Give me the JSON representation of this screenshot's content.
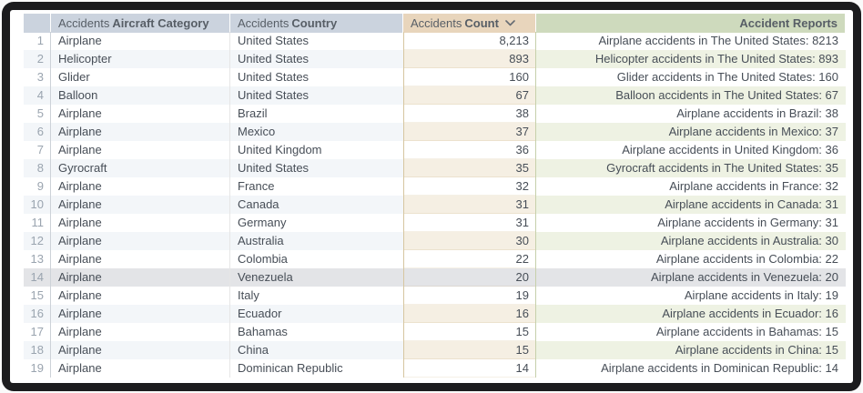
{
  "table": {
    "columns": [
      {
        "key": "n",
        "prefix": "",
        "label": ""
      },
      {
        "key": "category",
        "prefix": "Accidents",
        "label": "Aircraft Category"
      },
      {
        "key": "country",
        "prefix": "Accidents",
        "label": "Country"
      },
      {
        "key": "count",
        "prefix": "Accidents",
        "label": "Count",
        "sorted": "descending"
      },
      {
        "key": "report",
        "prefix": "",
        "label": "Accident Reports"
      }
    ],
    "highlighted_row": 14,
    "rows": [
      {
        "n": 1,
        "category": "Airplane",
        "country": "United States",
        "count": "8,213",
        "report": "Airplane accidents in The United States: 8213"
      },
      {
        "n": 2,
        "category": "Helicopter",
        "country": "United States",
        "count": "893",
        "report": "Helicopter accidents in The United States: 893"
      },
      {
        "n": 3,
        "category": "Glider",
        "country": "United States",
        "count": "160",
        "report": "Glider accidents in The United States: 160"
      },
      {
        "n": 4,
        "category": "Balloon",
        "country": "United States",
        "count": "67",
        "report": "Balloon accidents in The United States: 67"
      },
      {
        "n": 5,
        "category": "Airplane",
        "country": "Brazil",
        "count": "38",
        "report": "Airplane accidents in Brazil: 38"
      },
      {
        "n": 6,
        "category": "Airplane",
        "country": "Mexico",
        "count": "37",
        "report": "Airplane accidents in Mexico: 37"
      },
      {
        "n": 7,
        "category": "Airplane",
        "country": "United Kingdom",
        "count": "36",
        "report": "Airplane accidents in United Kingdom: 36"
      },
      {
        "n": 8,
        "category": "Gyrocraft",
        "country": "United States",
        "count": "35",
        "report": "Gyrocraft accidents in The United States: 35"
      },
      {
        "n": 9,
        "category": "Airplane",
        "country": "France",
        "count": "32",
        "report": "Airplane accidents in France: 32"
      },
      {
        "n": 10,
        "category": "Airplane",
        "country": "Canada",
        "count": "31",
        "report": "Airplane accidents in Canada: 31"
      },
      {
        "n": 11,
        "category": "Airplane",
        "country": "Germany",
        "count": "31",
        "report": "Airplane accidents in Germany: 31"
      },
      {
        "n": 12,
        "category": "Airplane",
        "country": "Australia",
        "count": "30",
        "report": "Airplane accidents in Australia: 30"
      },
      {
        "n": 13,
        "category": "Airplane",
        "country": "Colombia",
        "count": "22",
        "report": "Airplane accidents in Colombia: 22"
      },
      {
        "n": 14,
        "category": "Airplane",
        "country": "Venezuela",
        "count": "20",
        "report": "Airplane accidents in Venezuela: 20"
      },
      {
        "n": 15,
        "category": "Airplane",
        "country": "Italy",
        "count": "19",
        "report": "Airplane accidents in Italy: 19"
      },
      {
        "n": 16,
        "category": "Airplane",
        "country": "Ecuador",
        "count": "16",
        "report": "Airplane accidents in Ecuador: 16"
      },
      {
        "n": 17,
        "category": "Airplane",
        "country": "Bahamas",
        "count": "15",
        "report": "Airplane accidents in Bahamas: 15"
      },
      {
        "n": 18,
        "category": "Airplane",
        "country": "China",
        "count": "15",
        "report": "Airplane accidents in China: 15"
      },
      {
        "n": 19,
        "category": "Airplane",
        "country": "Dominican Republic",
        "count": "14",
        "report": "Airplane accidents in Dominican Republic: 14"
      }
    ]
  },
  "colors": {
    "frame_dark": "#1c1c1e",
    "header_blue": "#cbd3de",
    "header_tan": "#e8d5bc",
    "header_green": "#cedabd",
    "stripe_blue": "#f3f6f9",
    "stripe_tan": "#f5efe3",
    "stripe_green": "#eef2e3",
    "highlight_gray": "#e3e4e7",
    "count_border_tan": "#d6c6a0",
    "report_border_green": "#c6d0ab"
  },
  "icons": {
    "sort_descending": "chevron-down"
  }
}
